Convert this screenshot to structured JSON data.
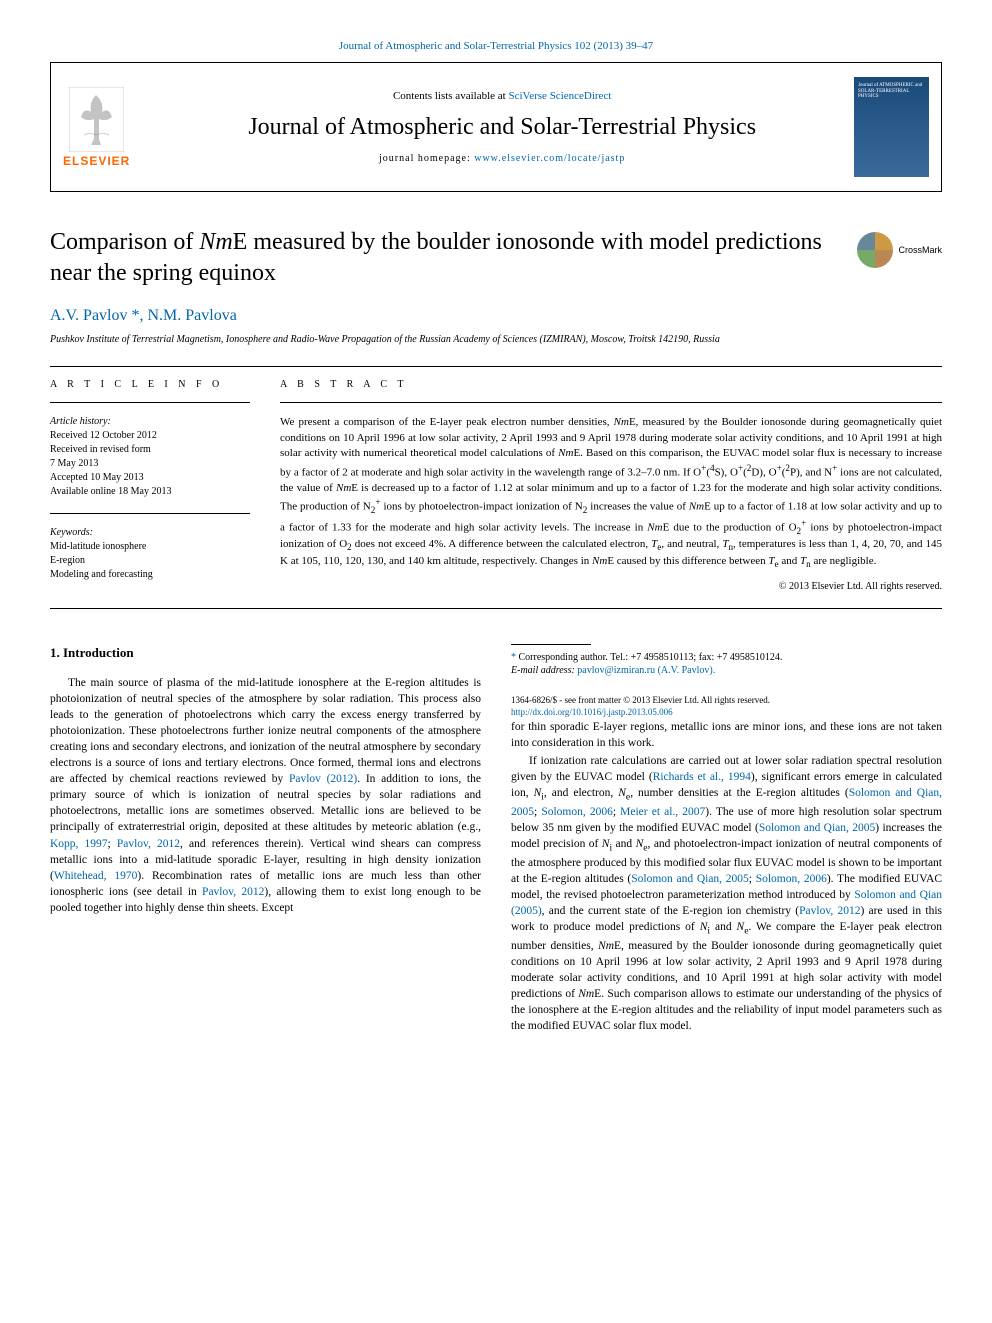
{
  "journal_ref": "Journal of Atmospheric and Solar-Terrestrial Physics 102 (2013) 39–47",
  "header": {
    "contents_prefix": "Contents lists available at ",
    "contents_link": "SciVerse ScienceDirect",
    "journal_title": "Journal of Atmospheric and Solar-Terrestrial Physics",
    "homepage_prefix": "journal homepage: ",
    "homepage_url": "www.elsevier.com/locate/jastp",
    "publisher": "ELSEVIER",
    "cover_label": "Journal of\nATMOSPHERIC and\nSOLAR-TERRESTRIAL\nPHYSICS"
  },
  "article": {
    "title_html": "Comparison of <i>Nm</i>E measured by the boulder ionosonde with model predictions near the spring equinox",
    "crossmark": "CrossMark",
    "authors_html": "A.V. Pavlov <a class='star'>*</a>, N.M. Pavlova",
    "affiliation": "Pushkov Institute of Terrestrial Magnetism, Ionosphere and Radio-Wave Propagation of the Russian Academy of Sciences (IZMIRAN), Moscow, Troitsk 142190, Russia"
  },
  "info": {
    "section_label": "A R T I C L E   I N F O",
    "history_label": "Article history:",
    "history": [
      "Received 12 October 2012",
      "Received in revised form",
      "7 May 2013",
      "Accepted 10 May 2013",
      "Available online 18 May 2013"
    ],
    "keywords_label": "Keywords:",
    "keywords": [
      "Mid-latitude ionosphere",
      "E-region",
      "Modeling and forecasting"
    ]
  },
  "abstract": {
    "section_label": "A B S T R A C T",
    "text_html": "We present a comparison of the E-layer peak electron number densities, <i>Nm</i>E, measured by the Boulder ionosonde during geomagnetically quiet conditions on 10 April 1996 at low solar activity, 2 April 1993 and 9 April 1978 during moderate solar activity conditions, and 10 April 1991 at high solar activity with numerical theoretical model calculations of <i>Nm</i>E. Based on this comparison, the EUVAC model solar flux is necessary to increase by a factor of 2 at moderate and high solar activity in the wavelength range of 3.2–7.0 nm. If O<sup>+</sup>(<sup>4</sup>S), O<sup>+</sup>(<sup>2</sup>D), O<sup>+</sup>(<sup>2</sup>P), and N<sup>+</sup> ions are not calculated, the value of <i>Nm</i>E is decreased up to a factor of 1.12 at solar minimum and up to a factor of 1.23 for the moderate and high solar activity conditions. The production of N<sub>2</sub><sup>+</sup> ions by photoelectron-impact ionization of N<sub>2</sub> increases the value of <i>Nm</i>E up to a factor of 1.18 at low solar activity and up to a factor of 1.33 for the moderate and high solar activity levels. The increase in <i>Nm</i>E due to the production of O<sub>2</sub><sup>+</sup> ions by photoelectron-impact ionization of O<sub>2</sub> does not exceed 4%. A difference between the calculated electron, <i>T</i><sub>e</sub>, and neutral, <i>T</i><sub>n</sub>, temperatures is less than 1, 4, 20, 70, and 145 K at 105, 110, 120, 130, and 140 km altitude, respectively. Changes in <i>Nm</i>E caused by this difference between <i>T</i><sub>e</sub> and <i>T</i><sub>n</sub> are negligible.",
    "copyright": "© 2013 Elsevier Ltd. All rights reserved."
  },
  "body": {
    "heading": "1.  Introduction",
    "p1_html": "The main source of plasma of the mid-latitude ionosphere at the E-region altitudes is photoionization of neutral species of the atmosphere by solar radiation. This process also leads to the generation of photoelectrons which carry the excess energy transferred by photoionization. These photoelectrons further ionize neutral components of the atmosphere creating ions and secondary electrons, and ionization of the neutral atmosphere by secondary electrons is a source of ions and tertiary electrons. Once formed, thermal ions and electrons are affected by chemical reactions reviewed by <a class='ref-link'>Pavlov (2012)</a>. In addition to ions, the primary source of which is ionization of neutral species by solar radiations and photoelectrons, metallic ions are sometimes observed. Metallic ions are believed to be principally of extraterrestrial origin, deposited at these altitudes by meteoric ablation (e.g., <a class='ref-link'>Kopp, 1997</a>; <a class='ref-link'>Pavlov, 2012</a>, and references therein). Vertical wind shears can compress metallic ions into a mid-latitude sporadic E-layer, resulting in high density ionization (<a class='ref-link'>Whitehead, 1970</a>). Recombination rates of metallic ions are much less than other ionospheric ions (see detail in <a class='ref-link'>Pavlov, 2012</a>), allowing them to exist long enough to be pooled together into highly dense thin sheets. Except",
    "p2_html": "for thin sporadic E-layer regions, metallic ions are minor ions, and these ions are not taken into consideration in this work.",
    "p3_html": "If ionization rate calculations are carried out at lower solar radiation spectral resolution given by the EUVAC model (<a class='ref-link'>Richards et al., 1994</a>), significant errors emerge in calculated ion, <i>N</i><sub>i</sub>, and electron, <i>N</i><sub>e</sub>, number densities at the E-region altitudes (<a class='ref-link'>Solomon and Qian, 2005</a>; <a class='ref-link'>Solomon, 2006</a>; <a class='ref-link'>Meier et al., 2007</a>). The use of more high resolution solar spectrum below 35 nm given by the modified EUVAC model (<a class='ref-link'>Solomon and Qian, 2005</a>) increases the model precision of <i>N</i><sub>i</sub> and <i>N</i><sub>e</sub>, and photoelectron-impact ionization of neutral components of the atmosphere produced by this modified solar flux EUVAC model is shown to be important at the E-region altitudes (<a class='ref-link'>Solomon and Qian, 2005</a>; <a class='ref-link'>Solomon, 2006</a>). The modified EUVAC model, the revised photoelectron parameterization method introduced by <a class='ref-link'>Solomon and Qian (2005)</a>, and the current state of the E-region ion chemistry (<a class='ref-link'>Pavlov, 2012</a>) are used in this work to produce model predictions of <i>N</i><sub>i</sub> and <i>N</i><sub>e</sub>. We compare the E-layer peak electron number densities, <i>Nm</i>E, measured by the Boulder ionosonde during geomagnetically quiet conditions on 10 April 1996 at low solar activity, 2 April 1993 and 9 April 1978 during moderate solar activity conditions, and 10 April 1991 at high solar activity with model predictions of <i>Nm</i>E. Such comparison allows to estimate our understanding of the physics of the ionosphere at the E-region altitudes and the reliability of input model parameters such as the modified EUVAC solar flux model."
  },
  "footnote": {
    "corr": "Corresponding author. Tel.: +7 4958510113; fax: +7 4958510124.",
    "email_label": "E-mail address: ",
    "email": "pavlov@izmiran.ru (A.V. Pavlov)."
  },
  "footer": {
    "issn": "1364-6826/$ - see front matter © 2013 Elsevier Ltd. All rights reserved.",
    "doi": "http://dx.doi.org/10.1016/j.jastp.2013.05.006"
  },
  "colors": {
    "link": "#0066aa",
    "publisher_orange": "#ff6600"
  }
}
